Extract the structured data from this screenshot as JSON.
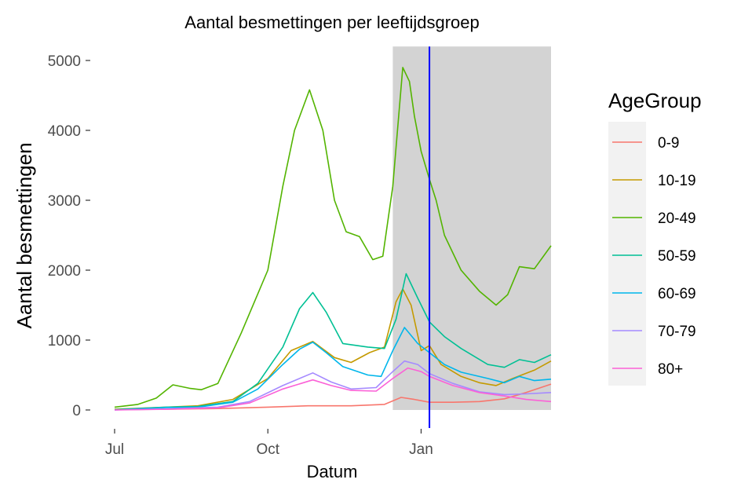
{
  "chart_data": {
    "type": "line",
    "title": "Aantal besmettingen per leeftijdsgroep",
    "xlabel": "Datum",
    "ylabel": "Aantal besmettingen",
    "x_ticks": [
      "Jul",
      "Oct",
      "Jan"
    ],
    "y_ticks": [
      0,
      1000,
      2000,
      3000,
      4000,
      5000
    ],
    "ylim": [
      0,
      5200
    ],
    "x_domain": [
      "2020-07-01",
      "2021-03-20"
    ],
    "grid": false,
    "legend": {
      "title": "AgeGroup",
      "position": "right"
    },
    "shaded_region": {
      "from": "2020-12-15",
      "to": "2021-03-20",
      "color": "#d3d3d3"
    },
    "vertical_line": {
      "date": "2021-01-06",
      "color": "#0000ff"
    },
    "series": [
      {
        "name": "0-9",
        "color": "#F8766D",
        "points": [
          [
            "2020-07-01",
            5
          ],
          [
            "2020-08-01",
            10
          ],
          [
            "2020-09-01",
            20
          ],
          [
            "2020-10-01",
            40
          ],
          [
            "2020-10-25",
            60
          ],
          [
            "2020-11-20",
            60
          ],
          [
            "2020-12-10",
            80
          ],
          [
            "2020-12-20",
            180
          ],
          [
            "2020-12-28",
            150
          ],
          [
            "2021-01-06",
            110
          ],
          [
            "2021-01-20",
            110
          ],
          [
            "2021-02-05",
            120
          ],
          [
            "2021-02-20",
            160
          ],
          [
            "2021-03-05",
            250
          ],
          [
            "2021-03-20",
            370
          ]
        ]
      },
      {
        "name": "10-19",
        "color": "#C49A00",
        "points": [
          [
            "2020-07-01",
            10
          ],
          [
            "2020-08-01",
            40
          ],
          [
            "2020-08-20",
            60
          ],
          [
            "2020-09-10",
            150
          ],
          [
            "2020-10-01",
            450
          ],
          [
            "2020-10-15",
            850
          ],
          [
            "2020-10-28",
            980
          ],
          [
            "2020-11-10",
            750
          ],
          [
            "2020-11-20",
            680
          ],
          [
            "2020-12-01",
            820
          ],
          [
            "2020-12-10",
            900
          ],
          [
            "2020-12-17",
            1550
          ],
          [
            "2020-12-21",
            1730
          ],
          [
            "2020-12-26",
            1500
          ],
          [
            "2021-01-01",
            850
          ],
          [
            "2021-01-06",
            920
          ],
          [
            "2021-01-13",
            650
          ],
          [
            "2021-01-25",
            480
          ],
          [
            "2021-02-05",
            390
          ],
          [
            "2021-02-15",
            350
          ],
          [
            "2021-02-25",
            450
          ],
          [
            "2021-03-10",
            570
          ],
          [
            "2021-03-20",
            700
          ]
        ]
      },
      {
        "name": "20-49",
        "color": "#53B400",
        "points": [
          [
            "2020-07-01",
            40
          ],
          [
            "2020-07-15",
            80
          ],
          [
            "2020-07-26",
            170
          ],
          [
            "2020-08-05",
            360
          ],
          [
            "2020-08-15",
            310
          ],
          [
            "2020-08-22",
            290
          ],
          [
            "2020-09-01",
            380
          ],
          [
            "2020-09-15",
            1100
          ],
          [
            "2020-10-01",
            2000
          ],
          [
            "2020-10-10",
            3200
          ],
          [
            "2020-10-17",
            4000
          ],
          [
            "2020-10-26",
            4580
          ],
          [
            "2020-11-03",
            4000
          ],
          [
            "2020-11-10",
            3000
          ],
          [
            "2020-11-17",
            2550
          ],
          [
            "2020-11-25",
            2480
          ],
          [
            "2020-12-03",
            2150
          ],
          [
            "2020-12-09",
            2200
          ],
          [
            "2020-12-15",
            3200
          ],
          [
            "2020-12-21",
            4900
          ],
          [
            "2020-12-25",
            4700
          ],
          [
            "2020-12-28",
            4200
          ],
          [
            "2021-01-01",
            3700
          ],
          [
            "2021-01-06",
            3300
          ],
          [
            "2021-01-10",
            3000
          ],
          [
            "2021-01-15",
            2500
          ],
          [
            "2021-01-25",
            2000
          ],
          [
            "2021-02-05",
            1700
          ],
          [
            "2021-02-15",
            1500
          ],
          [
            "2021-02-22",
            1650
          ],
          [
            "2021-03-01",
            2050
          ],
          [
            "2021-03-10",
            2020
          ],
          [
            "2021-03-20",
            2350
          ]
        ]
      },
      {
        "name": "50-59",
        "color": "#00C094",
        "points": [
          [
            "2020-07-01",
            5
          ],
          [
            "2020-08-01",
            40
          ],
          [
            "2020-08-20",
            50
          ],
          [
            "2020-09-10",
            120
          ],
          [
            "2020-09-25",
            380
          ],
          [
            "2020-10-10",
            900
          ],
          [
            "2020-10-20",
            1450
          ],
          [
            "2020-10-28",
            1680
          ],
          [
            "2020-11-05",
            1400
          ],
          [
            "2020-11-15",
            950
          ],
          [
            "2020-11-30",
            900
          ],
          [
            "2020-12-10",
            880
          ],
          [
            "2020-12-17",
            1300
          ],
          [
            "2020-12-23",
            1950
          ],
          [
            "2020-12-30",
            1600
          ],
          [
            "2021-01-06",
            1260
          ],
          [
            "2021-01-15",
            1050
          ],
          [
            "2021-01-25",
            880
          ],
          [
            "2021-02-10",
            650
          ],
          [
            "2021-02-20",
            610
          ],
          [
            "2021-03-01",
            720
          ],
          [
            "2021-03-10",
            680
          ],
          [
            "2021-03-20",
            790
          ]
        ]
      },
      {
        "name": "60-69",
        "color": "#00B6EB",
        "points": [
          [
            "2020-07-01",
            0
          ],
          [
            "2020-08-01",
            35
          ],
          [
            "2020-08-20",
            40
          ],
          [
            "2020-09-10",
            110
          ],
          [
            "2020-09-25",
            300
          ],
          [
            "2020-10-10",
            650
          ],
          [
            "2020-10-20",
            870
          ],
          [
            "2020-10-28",
            970
          ],
          [
            "2020-11-05",
            820
          ],
          [
            "2020-11-15",
            620
          ],
          [
            "2020-11-30",
            500
          ],
          [
            "2020-12-08",
            480
          ],
          [
            "2020-12-15",
            850
          ],
          [
            "2020-12-22",
            1180
          ],
          [
            "2020-12-30",
            950
          ],
          [
            "2021-01-06",
            820
          ],
          [
            "2021-01-15",
            650
          ],
          [
            "2021-01-25",
            540
          ],
          [
            "2021-02-10",
            450
          ],
          [
            "2021-02-20",
            390
          ],
          [
            "2021-03-01",
            480
          ],
          [
            "2021-03-10",
            420
          ],
          [
            "2021-03-20",
            440
          ]
        ]
      },
      {
        "name": "70-79",
        "color": "#A58AFF",
        "points": [
          [
            "2020-07-01",
            0
          ],
          [
            "2020-08-01",
            15
          ],
          [
            "2020-09-01",
            40
          ],
          [
            "2020-09-20",
            120
          ],
          [
            "2020-10-10",
            350
          ],
          [
            "2020-10-28",
            530
          ],
          [
            "2020-11-08",
            400
          ],
          [
            "2020-11-20",
            300
          ],
          [
            "2020-12-05",
            320
          ],
          [
            "2020-12-15",
            550
          ],
          [
            "2020-12-22",
            700
          ],
          [
            "2020-12-30",
            650
          ],
          [
            "2021-01-06",
            520
          ],
          [
            "2021-01-20",
            380
          ],
          [
            "2021-02-05",
            260
          ],
          [
            "2021-02-20",
            220
          ],
          [
            "2021-03-05",
            230
          ],
          [
            "2021-03-20",
            250
          ]
        ]
      },
      {
        "name": "80+",
        "color": "#FB61D7",
        "points": [
          [
            "2020-07-01",
            0
          ],
          [
            "2020-08-01",
            10
          ],
          [
            "2020-09-01",
            30
          ],
          [
            "2020-09-20",
            100
          ],
          [
            "2020-10-10",
            300
          ],
          [
            "2020-10-28",
            430
          ],
          [
            "2020-11-08",
            350
          ],
          [
            "2020-11-20",
            280
          ],
          [
            "2020-12-05",
            270
          ],
          [
            "2020-12-15",
            450
          ],
          [
            "2020-12-24",
            600
          ],
          [
            "2021-01-01",
            550
          ],
          [
            "2021-01-06",
            480
          ],
          [
            "2021-01-20",
            350
          ],
          [
            "2021-02-05",
            250
          ],
          [
            "2021-02-20",
            200
          ],
          [
            "2021-03-05",
            150
          ],
          [
            "2021-03-20",
            120
          ]
        ]
      }
    ]
  }
}
